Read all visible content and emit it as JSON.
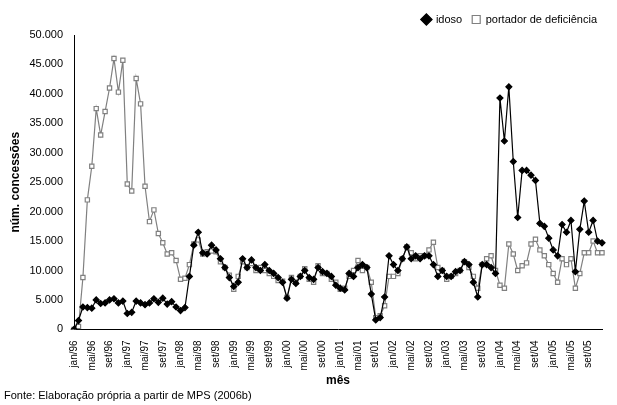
{
  "chart_data": {
    "type": "line",
    "x_label": "mês",
    "y_label": "núm. concessões",
    "source": "Fonte: Elaboração própria a partir de MPS (2006b)",
    "categories": [
      "jan/96",
      null,
      null,
      null,
      "mai/96",
      null,
      null,
      null,
      "set/96",
      null,
      null,
      null,
      "jan/97",
      null,
      null,
      null,
      "mai/97",
      null,
      null,
      null,
      "set/97",
      null,
      null,
      null,
      "jan/98",
      null,
      null,
      null,
      "mai/98",
      null,
      null,
      null,
      "set/98",
      null,
      null,
      null,
      "jan/99",
      null,
      null,
      null,
      "mai/99",
      null,
      null,
      null,
      "set/99",
      null,
      null,
      null,
      "jan/00",
      null,
      null,
      null,
      "mai/00",
      null,
      null,
      null,
      "set/00",
      null,
      null,
      null,
      "jan/01",
      null,
      null,
      null,
      "mai/01",
      null,
      null,
      null,
      "set/01",
      null,
      null,
      null,
      "jan/02",
      null,
      null,
      null,
      "mai/02",
      null,
      null,
      null,
      "set/02",
      null,
      null,
      null,
      "jan/03",
      null,
      null,
      null,
      "mai/03",
      null,
      null,
      null,
      "set/03",
      null,
      null,
      null,
      "jan/04",
      null,
      null,
      null,
      "mai/04",
      null,
      null,
      null,
      "set/04",
      null,
      null,
      null,
      "jan/05",
      null,
      null,
      null,
      "mai/05",
      null,
      null,
      null,
      "set/05",
      null,
      null,
      null
    ],
    "series": [
      {
        "name": "idoso",
        "color": "#000000",
        "marker": "diamond",
        "line_style": "solid",
        "values": [
          0,
          1500,
          3800,
          3700,
          3600,
          5000,
          4400,
          4500,
          5000,
          5200,
          4500,
          4800,
          2700,
          2900,
          4800,
          4500,
          4200,
          4500,
          5200,
          4600,
          5300,
          4300,
          4700,
          3800,
          3200,
          3700,
          9000,
          14300,
          16500,
          13000,
          12800,
          14300,
          13500,
          12000,
          10500,
          8800,
          7300,
          8000,
          12000,
          10500,
          11800,
          10500,
          10000,
          11000,
          10000,
          9500,
          8800,
          8000,
          5300,
          8500,
          7800,
          9000,
          10000,
          8800,
          8500,
          10500,
          9800,
          9500,
          9000,
          7500,
          7000,
          6700,
          9500,
          9000,
          10500,
          11000,
          10500,
          6000,
          1600,
          2000,
          5500,
          12500,
          11000,
          10000,
          12000,
          14000,
          12000,
          12500,
          12000,
          12500,
          12500,
          11000,
          9000,
          10000,
          9000,
          9000,
          9800,
          10000,
          11500,
          11000,
          8000,
          5500,
          11000,
          11000,
          10500,
          9500,
          39300,
          32000,
          41200,
          28500,
          19000,
          27000,
          27000,
          26200,
          25300,
          18000,
          17500,
          15500,
          13500,
          12500,
          17800,
          16500,
          18500,
          9800,
          17000,
          21800,
          16500,
          18500,
          15000,
          14700
        ]
      },
      {
        "name": "portador de deficiência",
        "color": "#808080",
        "marker": "square",
        "line_style": "solid",
        "values": [
          0,
          500,
          8800,
          22000,
          27700,
          37500,
          33000,
          37000,
          41000,
          46000,
          40300,
          45700,
          24700,
          23500,
          42600,
          38300,
          24300,
          18300,
          20300,
          16300,
          14700,
          12800,
          13000,
          11700,
          8500,
          8700,
          11000,
          14500,
          15200,
          12800,
          13200,
          13300,
          13200,
          11500,
          10500,
          9200,
          6800,
          9000,
          11500,
          10500,
          11200,
          10000,
          10500,
          10000,
          9500,
          9000,
          8300,
          8200,
          5400,
          8800,
          8000,
          9000,
          10300,
          8500,
          8000,
          10800,
          9500,
          9500,
          8500,
          8000,
          6800,
          7000,
          9000,
          10000,
          11700,
          10000,
          10500,
          8000,
          2000,
          2300,
          4000,
          9000,
          9000,
          9500,
          12000,
          14000,
          13000,
          12000,
          12500,
          12500,
          13500,
          14800,
          10500,
          10000,
          8500,
          9000,
          9500,
          10000,
          11500,
          10500,
          9000,
          7000,
          11000,
          12000,
          12500,
          10000,
          7500,
          7000,
          14500,
          12800,
          10000,
          10800,
          11300,
          14500,
          15300,
          13500,
          12500,
          11000,
          9500,
          8000,
          12000,
          11000,
          12000,
          7000,
          9500,
          13000,
          13000,
          15000,
          13000,
          13000
        ]
      }
    ],
    "ylim": [
      0,
      50000
    ],
    "yticks": [
      0,
      {
        "value": 5000,
        "label": "5.000"
      },
      {
        "value": 10000,
        "label": "10.000"
      },
      {
        "value": 15000,
        "label": "15.000"
      },
      {
        "value": 20000,
        "label": "20.000"
      },
      {
        "value": 25000,
        "label": "25.000"
      },
      {
        "value": 30000,
        "label": "30.000"
      },
      {
        "value": 35000,
        "label": "35.000"
      },
      {
        "value": 40000,
        "label": "40.000"
      },
      {
        "value": 45000,
        "label": "45.000"
      },
      {
        "value": 50000,
        "label": "50.000"
      }
    ],
    "grid": false,
    "legend": "top-right"
  }
}
